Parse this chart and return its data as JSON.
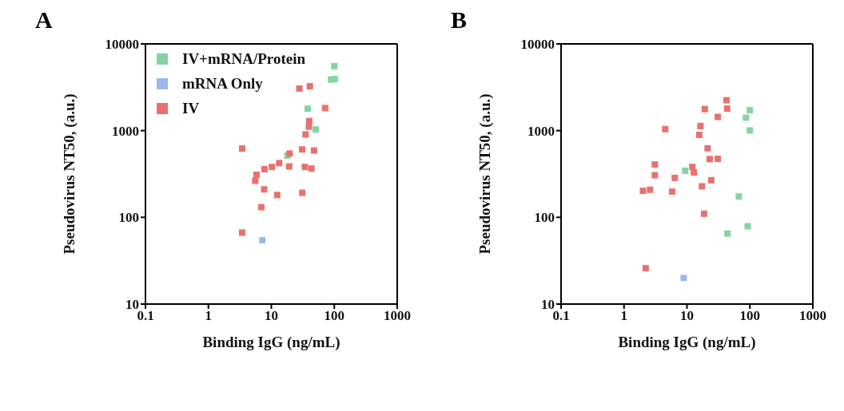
{
  "chart_data": [
    {
      "type": "scatter",
      "title": "A",
      "xlabel": "Binding IgG (ng/mL)",
      "ylabel": "Pseudovirus NT50, (a.u.)",
      "log": "xy",
      "marker": "square",
      "legend": "top left",
      "grid": false,
      "xlim": [
        0.1,
        1000
      ],
      "xticks": [
        0.1,
        1,
        10,
        100,
        1000
      ],
      "ylim": [
        10,
        10000
      ],
      "yticks": [
        10,
        100,
        1000,
        10000
      ],
      "series": [
        {
          "name": "IV+mRNA/Protein",
          "color": "#84d4a4",
          "x": [
            100,
            88.7,
            101.6,
            37.8,
            50.8,
            18
          ],
          "values": [
            5540,
            3880,
            3930,
            1790,
            1030,
            514
          ]
        },
        {
          "name": "mRNA Only",
          "color": "#9bb8ec",
          "x": [
            7.2
          ],
          "values": [
            54.5
          ]
        },
        {
          "name": "IV",
          "color": "#e8716f",
          "x": [
            27.9,
            41,
            71.6,
            40,
            39.5,
            34.9,
            3.44,
            30.8,
            47.7,
            19.5,
            13.3,
            10.2,
            7.8,
            19.2,
            34.1,
            43.3,
            5.82,
            5.55,
            7.69,
            12.4,
            31,
            6.93,
            3.44
          ],
          "values": [
            3060,
            3250,
            1820,
            1290,
            1110,
            904,
            621,
            607,
            589,
            545,
            422,
            381,
            359,
            386,
            381,
            365,
            310,
            264,
            210,
            181,
            192,
            131,
            66.7
          ]
        }
      ]
    },
    {
      "type": "scatter",
      "title": "B",
      "xlabel": "Binding IgG (ng/mL)",
      "ylabel": "Pseudovirus NT50, (a.u.)",
      "log": "xy",
      "marker": "square",
      "grid": false,
      "xlim": [
        0.1,
        1000
      ],
      "xticks": [
        0.1,
        1,
        10,
        100,
        1000
      ],
      "ylim": [
        10,
        10000
      ],
      "yticks": [
        10,
        100,
        1000,
        10000
      ],
      "series": [
        {
          "color": "#84d4a4",
          "x": [
            100,
            86.7,
            100,
            9.38,
            66.7,
            92.4,
            44.1
          ],
          "values": [
            1720,
            1410,
            1005,
            344,
            174,
            79,
            65
          ]
        },
        {
          "color": "#9bb8ec",
          "x": [
            8.88
          ],
          "values": [
            20
          ]
        },
        {
          "color": "#e8716f",
          "x": [
            42.4,
            43.5,
            19.2,
            30.9,
            4.52,
            16.4,
            15.7,
            21.3,
            23,
            30.9,
            3.09,
            3.09,
            12.2,
            12.9,
            6.41,
            24.3,
            17.3,
            2,
            2.59,
            5.83,
            18.7,
            2.21
          ],
          "values": [
            2240,
            1790,
            1770,
            1440,
            1040,
            1130,
            893,
            625,
            470,
            472,
            407,
            306,
            381,
            330,
            285,
            268,
            228,
            202,
            208,
            198,
            110,
            25.9
          ]
        }
      ]
    }
  ]
}
